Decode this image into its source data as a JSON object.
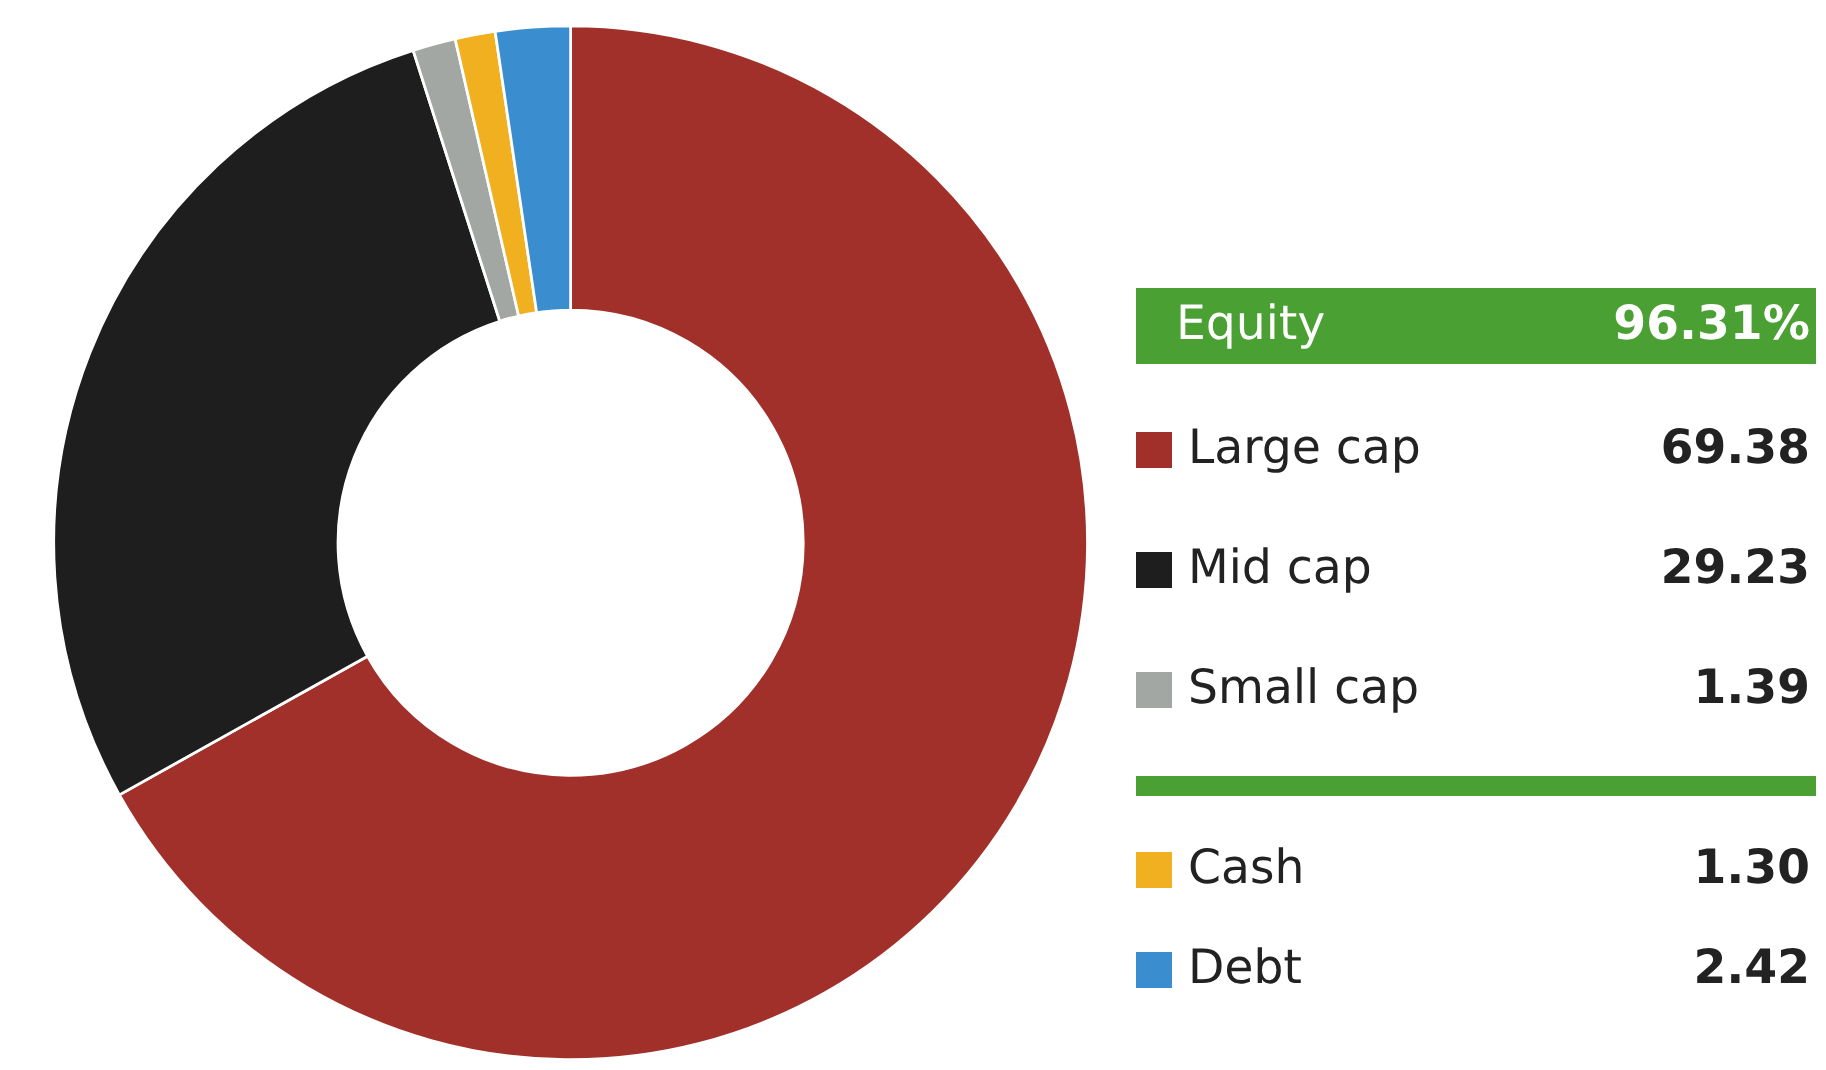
{
  "chart_data": {
    "type": "donut",
    "categories": [
      "Large cap",
      "Mid cap",
      "Small cap",
      "Cash",
      "Debt"
    ],
    "values": [
      69.38,
      29.23,
      1.39,
      1.3,
      2.42
    ],
    "value_labels": [
      "69.38",
      "29.23",
      "1.39",
      "1.30",
      "2.42"
    ],
    "colors": [
      "#a1302a",
      "#1e1e1e",
      "#a3a7a3",
      "#f0b020",
      "#3a8ed0"
    ],
    "annotations": [
      "Equity",
      "96.31%"
    ],
    "legend": "right"
  }
}
